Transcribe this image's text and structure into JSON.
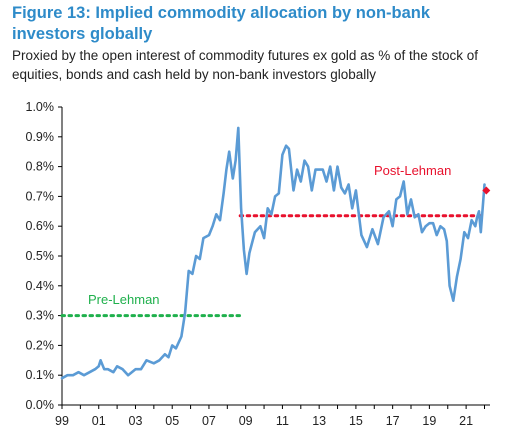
{
  "title": "Figure 13: Implied commodity allocation by non-bank investors globally",
  "subtitle": "Proxied by the open interest of commodity futures ex gold as % of the stock of equities, bonds and cash held by non-bank investors globally",
  "colors": {
    "title": "#2e8bc9",
    "line": "#5b9bd5",
    "pre": "#1fb04c",
    "post": "#e8112d"
  },
  "chart_data": {
    "type": "line",
    "title": "Figure 13: Implied commodity allocation by non-bank investors globally",
    "xlabel": "",
    "ylabel": "",
    "xlim": [
      1999,
      2022.3
    ],
    "ylim": [
      0,
      1.0
    ],
    "grid": false,
    "x_ticks": [
      1999,
      2001,
      2003,
      2005,
      2007,
      2009,
      2011,
      2013,
      2015,
      2017,
      2019,
      2021
    ],
    "x_tick_labels": [
      "99",
      "01",
      "03",
      "05",
      "07",
      "09",
      "11",
      "13",
      "15",
      "17",
      "19",
      "21"
    ],
    "y_ticks": [
      0,
      0.1,
      0.2,
      0.3,
      0.4,
      0.5,
      0.6,
      0.7,
      0.8,
      0.9,
      1.0
    ],
    "y_tick_labels": [
      "0.0%",
      "0.1%",
      "0.2%",
      "0.3%",
      "0.4%",
      "0.5%",
      "0.6%",
      "0.7%",
      "0.8%",
      "0.9%",
      "1.0%"
    ],
    "series": [
      {
        "x": [
          1999.0,
          1999.3,
          1999.6,
          1999.9,
          2000.2,
          2000.5,
          2000.8,
          2001.0,
          2001.1,
          2001.3,
          2001.5,
          2001.8,
          2002.0,
          2002.3,
          2002.6,
          2003.0,
          2003.3,
          2003.6,
          2004.0,
          2004.3,
          2004.6,
          2004.8,
          2005.0,
          2005.2,
          2005.5,
          2005.7,
          2005.9,
          2006.1,
          2006.3,
          2006.5,
          2006.7,
          2007.0,
          2007.2,
          2007.4,
          2007.6,
          2007.8,
          2007.95,
          2008.1,
          2008.3,
          2008.45,
          2008.6,
          2008.75,
          2008.9,
          2009.05,
          2009.2,
          2009.5,
          2009.8,
          2010.0,
          2010.2,
          2010.4,
          2010.6,
          2010.8,
          2011.0,
          2011.2,
          2011.35,
          2011.6,
          2011.8,
          2012.0,
          2012.2,
          2012.4,
          2012.6,
          2012.8,
          2013.0,
          2013.2,
          2013.4,
          2013.6,
          2013.8,
          2014.0,
          2014.2,
          2014.4,
          2014.6,
          2014.8,
          2015.0,
          2015.3,
          2015.6,
          2015.9,
          2016.2,
          2016.5,
          2016.8,
          2017.0,
          2017.2,
          2017.4,
          2017.6,
          2017.8,
          2018.0,
          2018.2,
          2018.4,
          2018.6,
          2018.8,
          2019.0,
          2019.2,
          2019.4,
          2019.6,
          2019.8,
          2019.95,
          2020.1,
          2020.3,
          2020.5,
          2020.7,
          2020.9,
          2021.1,
          2021.3,
          2021.5,
          2021.6,
          2021.7,
          2021.8,
          2022.0
        ],
        "values": [
          0.09,
          0.1,
          0.1,
          0.11,
          0.1,
          0.11,
          0.12,
          0.13,
          0.15,
          0.12,
          0.12,
          0.11,
          0.13,
          0.12,
          0.1,
          0.12,
          0.12,
          0.15,
          0.14,
          0.15,
          0.17,
          0.16,
          0.2,
          0.19,
          0.23,
          0.31,
          0.45,
          0.44,
          0.5,
          0.49,
          0.56,
          0.57,
          0.6,
          0.64,
          0.62,
          0.71,
          0.79,
          0.85,
          0.76,
          0.82,
          0.93,
          0.66,
          0.52,
          0.44,
          0.51,
          0.58,
          0.6,
          0.56,
          0.66,
          0.64,
          0.7,
          0.71,
          0.84,
          0.87,
          0.86,
          0.72,
          0.79,
          0.75,
          0.82,
          0.8,
          0.72,
          0.79,
          0.79,
          0.79,
          0.75,
          0.8,
          0.72,
          0.8,
          0.73,
          0.71,
          0.74,
          0.66,
          0.72,
          0.57,
          0.53,
          0.59,
          0.54,
          0.63,
          0.65,
          0.6,
          0.69,
          0.7,
          0.75,
          0.64,
          0.69,
          0.63,
          0.64,
          0.58,
          0.6,
          0.61,
          0.61,
          0.57,
          0.6,
          0.59,
          0.55,
          0.4,
          0.35,
          0.43,
          0.49,
          0.58,
          0.56,
          0.62,
          0.6,
          0.63,
          0.65,
          0.58,
          0.74
        ]
      }
    ],
    "reference_lines": [
      {
        "label": "Pre-Lehman",
        "value": 0.3,
        "x_start": 1999.0,
        "x_end": 2008.7,
        "color": "#1fb04c"
      },
      {
        "label": "Post-Lehman",
        "value": 0.635,
        "x_start": 2008.7,
        "x_end": 2022.0,
        "color": "#e8112d"
      }
    ],
    "latest_point": {
      "x": 2022.1,
      "value": 0.72
    }
  }
}
